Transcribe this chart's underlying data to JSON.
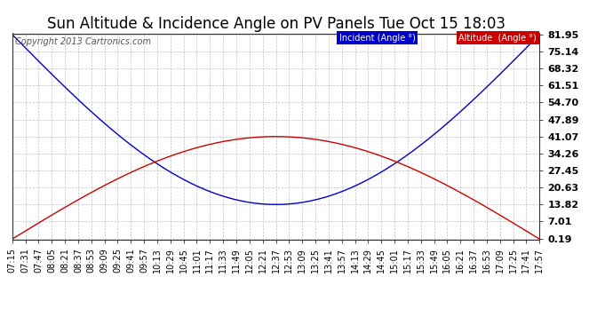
{
  "title": "Sun Altitude & Incidence Angle on PV Panels Tue Oct 15 18:03",
  "copyright": "Copyright 2013 Cartronics.com",
  "yticks": [
    0.19,
    7.01,
    13.82,
    20.63,
    27.45,
    34.26,
    41.07,
    47.89,
    54.7,
    61.51,
    68.32,
    75.14,
    81.95
  ],
  "ymin": 0.19,
  "ymax": 81.95,
  "xtick_labels": [
    "07:15",
    "07:31",
    "07:47",
    "08:05",
    "08:21",
    "08:37",
    "08:53",
    "09:09",
    "09:25",
    "09:41",
    "09:57",
    "10:13",
    "10:29",
    "10:45",
    "11:01",
    "11:17",
    "11:33",
    "11:49",
    "12:05",
    "12:21",
    "12:37",
    "12:53",
    "13:09",
    "13:25",
    "13:41",
    "13:57",
    "14:13",
    "14:29",
    "14:45",
    "15:01",
    "15:17",
    "15:33",
    "15:49",
    "16:05",
    "16:21",
    "16:37",
    "16:53",
    "17:09",
    "17:25",
    "17:41",
    "17:57"
  ],
  "incident_color": "#0000cc",
  "altitude_color": "#cc0000",
  "background_color": "#ffffff",
  "grid_color": "#bbbbbb",
  "title_fontsize": 12,
  "copyright_fontsize": 7,
  "tick_fontsize": 7,
  "ytick_fontsize": 8,
  "incident_label": "Incident (Angle °)",
  "altitude_label": "Altitude  (Angle °)",
  "legend_incident_bg": "#0000cc",
  "legend_altitude_bg": "#cc0000",
  "legend_text_color": "#ffffff",
  "altitude_peak": 41.07,
  "incident_min": 13.82,
  "incident_max": 81.95
}
